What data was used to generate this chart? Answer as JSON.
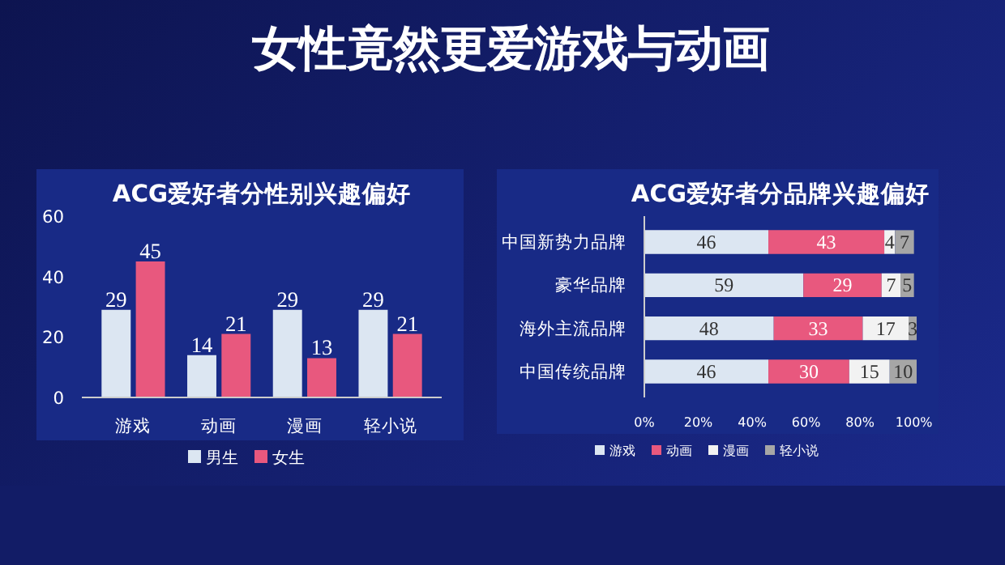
{
  "chart_data": [
    {
      "type": "bar",
      "title": "ACG爱好者分性别兴趣偏好",
      "annotations": [
        "女性竟然更爱游戏与动画"
      ],
      "categories": [
        "游戏",
        "动画",
        "漫画",
        "轻小说"
      ],
      "series": [
        {
          "name": "男生",
          "color": "#dce6f2",
          "values": [
            29,
            14,
            29,
            29
          ]
        },
        {
          "name": "女生",
          "color": "#e8587e",
          "values": [
            45,
            21,
            13,
            21
          ]
        }
      ],
      "ylim": [
        0,
        60
      ],
      "yticks": [
        0,
        20,
        40,
        60
      ],
      "data_labels": true,
      "legend": "bottom"
    },
    {
      "type": "bar",
      "title": "ACG爱好者分品牌兴趣偏好",
      "orientation": "horizontal",
      "stacked": true,
      "categories": [
        "中国新势力品牌",
        "豪华品牌",
        "海外主流品牌",
        "中国传统品牌"
      ],
      "series": [
        {
          "name": "游戏",
          "color": "#dce6f2",
          "values": [
            46,
            59,
            48,
            46
          ]
        },
        {
          "name": "动画",
          "color": "#e8587e",
          "values": [
            43,
            29,
            33,
            30
          ]
        },
        {
          "name": "漫画",
          "color": "#f2f2f2",
          "values": [
            4,
            7,
            17,
            15
          ]
        },
        {
          "name": "轻小说",
          "color": "#a6a6a6",
          "values": [
            7,
            5,
            3,
            10
          ]
        }
      ],
      "xlim": [
        0,
        101
      ],
      "xticks": [
        {
          "value": 0,
          "label": "0%"
        },
        {
          "value": 20,
          "label": "20%"
        },
        {
          "value": 40,
          "label": "40%"
        },
        {
          "value": 60,
          "label": "60%"
        },
        {
          "value": 80,
          "label": "80%"
        },
        {
          "value": 100,
          "label": "100%"
        }
      ],
      "data_labels": true,
      "legend": "bottom"
    }
  ]
}
